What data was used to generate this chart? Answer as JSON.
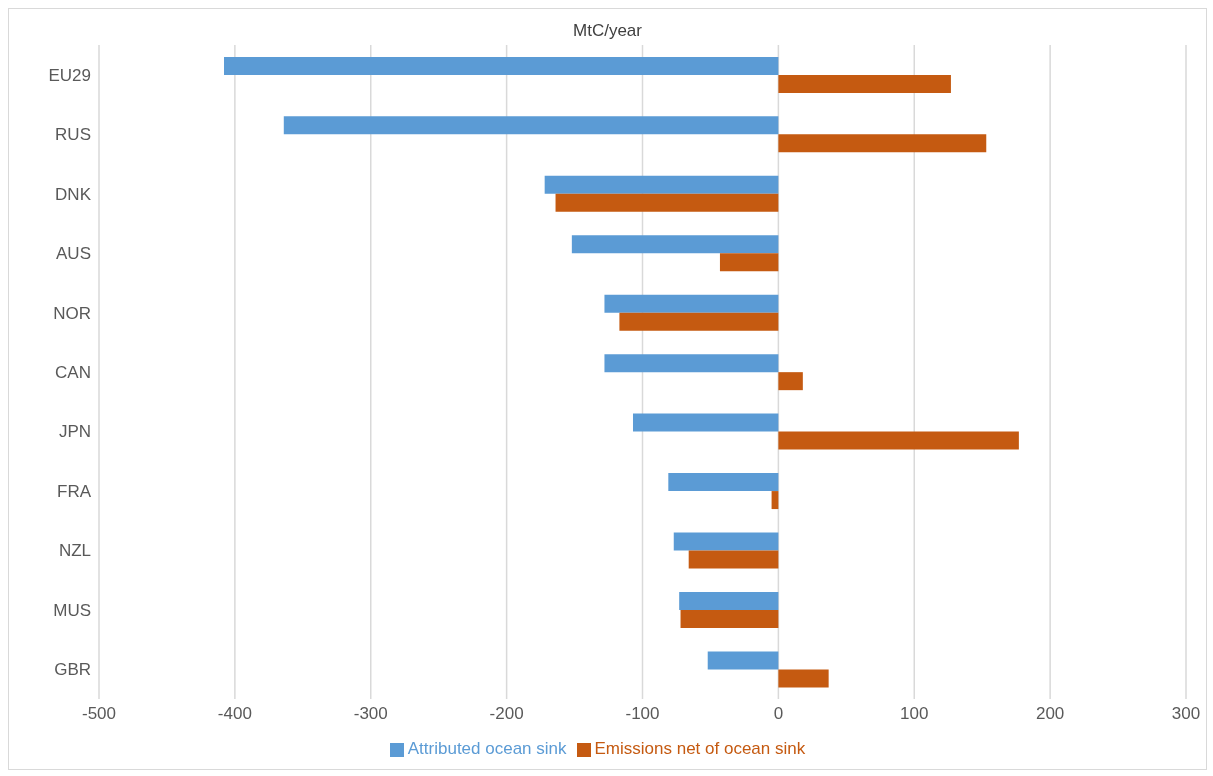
{
  "chart_data": {
    "type": "bar",
    "orientation": "horizontal",
    "title": "MtC/year",
    "categories": [
      "EU29",
      "RUS",
      "DNK",
      "AUS",
      "NOR",
      "CAN",
      "JPN",
      "FRA",
      "NZL",
      "MUS",
      "GBR"
    ],
    "series": [
      {
        "name": "Attributed ocean sink",
        "color": "#5b9bd5",
        "values": [
          -408,
          -364,
          -172,
          -152,
          -128,
          -128,
          -107,
          -81,
          -77,
          -73,
          -52
        ]
      },
      {
        "name": "Emissions net of ocean sink",
        "color": "#c55a11",
        "values": [
          127,
          153,
          -164,
          -43,
          -117,
          18,
          177,
          -5,
          -66,
          -72,
          37
        ]
      }
    ],
    "xlim": [
      -500,
      300
    ],
    "xticks": [
      -500,
      -400,
      -300,
      -200,
      -100,
      0,
      100,
      200,
      300
    ],
    "grid": "x",
    "legend": "bottom"
  }
}
